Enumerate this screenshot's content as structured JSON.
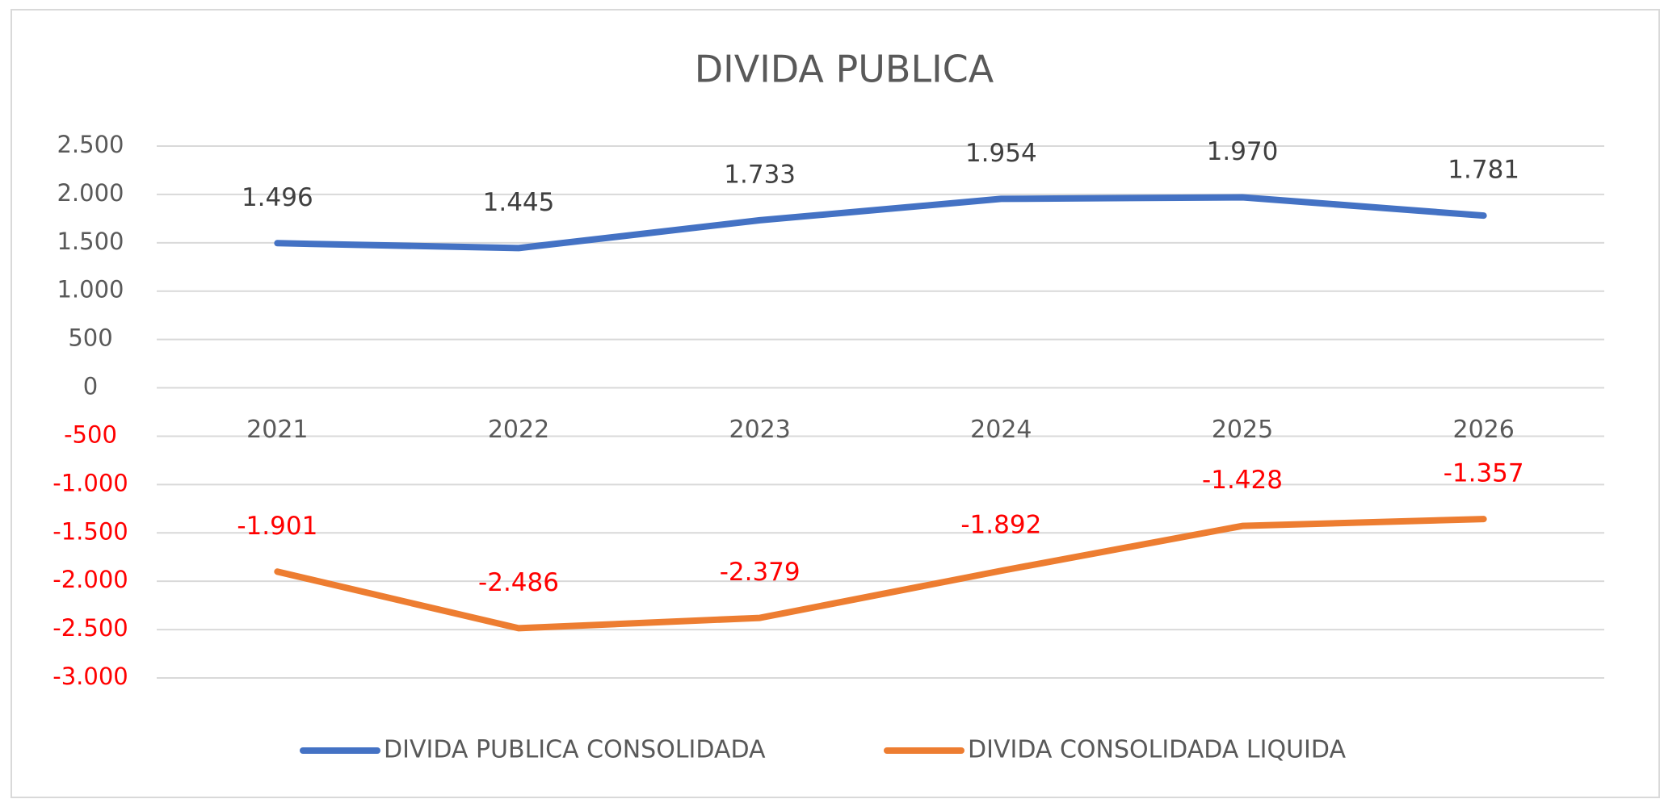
{
  "chart_data": {
    "type": "line",
    "title": "DIVIDA PUBLICA",
    "categories": [
      "2021",
      "2022",
      "2023",
      "2024",
      "2025",
      "2026"
    ],
    "series": [
      {
        "name": "DIVIDA PUBLICA CONSOLIDADA",
        "color": "#4472c4",
        "values": [
          1496,
          1445,
          1733,
          1954,
          1970,
          1781
        ],
        "value_labels": [
          "1.496",
          "1.445",
          "1.733",
          "1.954",
          "1.970",
          "1.781"
        ],
        "label_color": "#404040"
      },
      {
        "name": "DIVIDA CONSOLIDADA LIQUIDA",
        "color": "#ed7d31",
        "values": [
          -1901,
          -2486,
          -2379,
          -1892,
          -1428,
          -1357
        ],
        "value_labels": [
          "-1.901",
          "-2.486",
          "-2.379",
          "-1.892",
          "-1.428",
          "-1.357"
        ],
        "label_color": "#ff0000"
      }
    ],
    "ylim": [
      -3000,
      2500
    ],
    "yticks": [
      {
        "value": -3000,
        "label": "-3.000"
      },
      {
        "value": -2500,
        "label": "-2.500"
      },
      {
        "value": -2000,
        "label": "-2.000"
      },
      {
        "value": -1500,
        "label": "-1.500"
      },
      {
        "value": -1000,
        "label": "-1.000"
      },
      -500,
      0,
      500,
      {
        "value": 1000,
        "label": "1.000"
      },
      {
        "value": 1500,
        "label": "1.500"
      },
      {
        "value": 2000,
        "label": "2.000"
      },
      {
        "value": 2500,
        "label": "2.500"
      }
    ],
    "negative_tick_color": "#ff0000",
    "grid": true,
    "legend": "bottom"
  }
}
